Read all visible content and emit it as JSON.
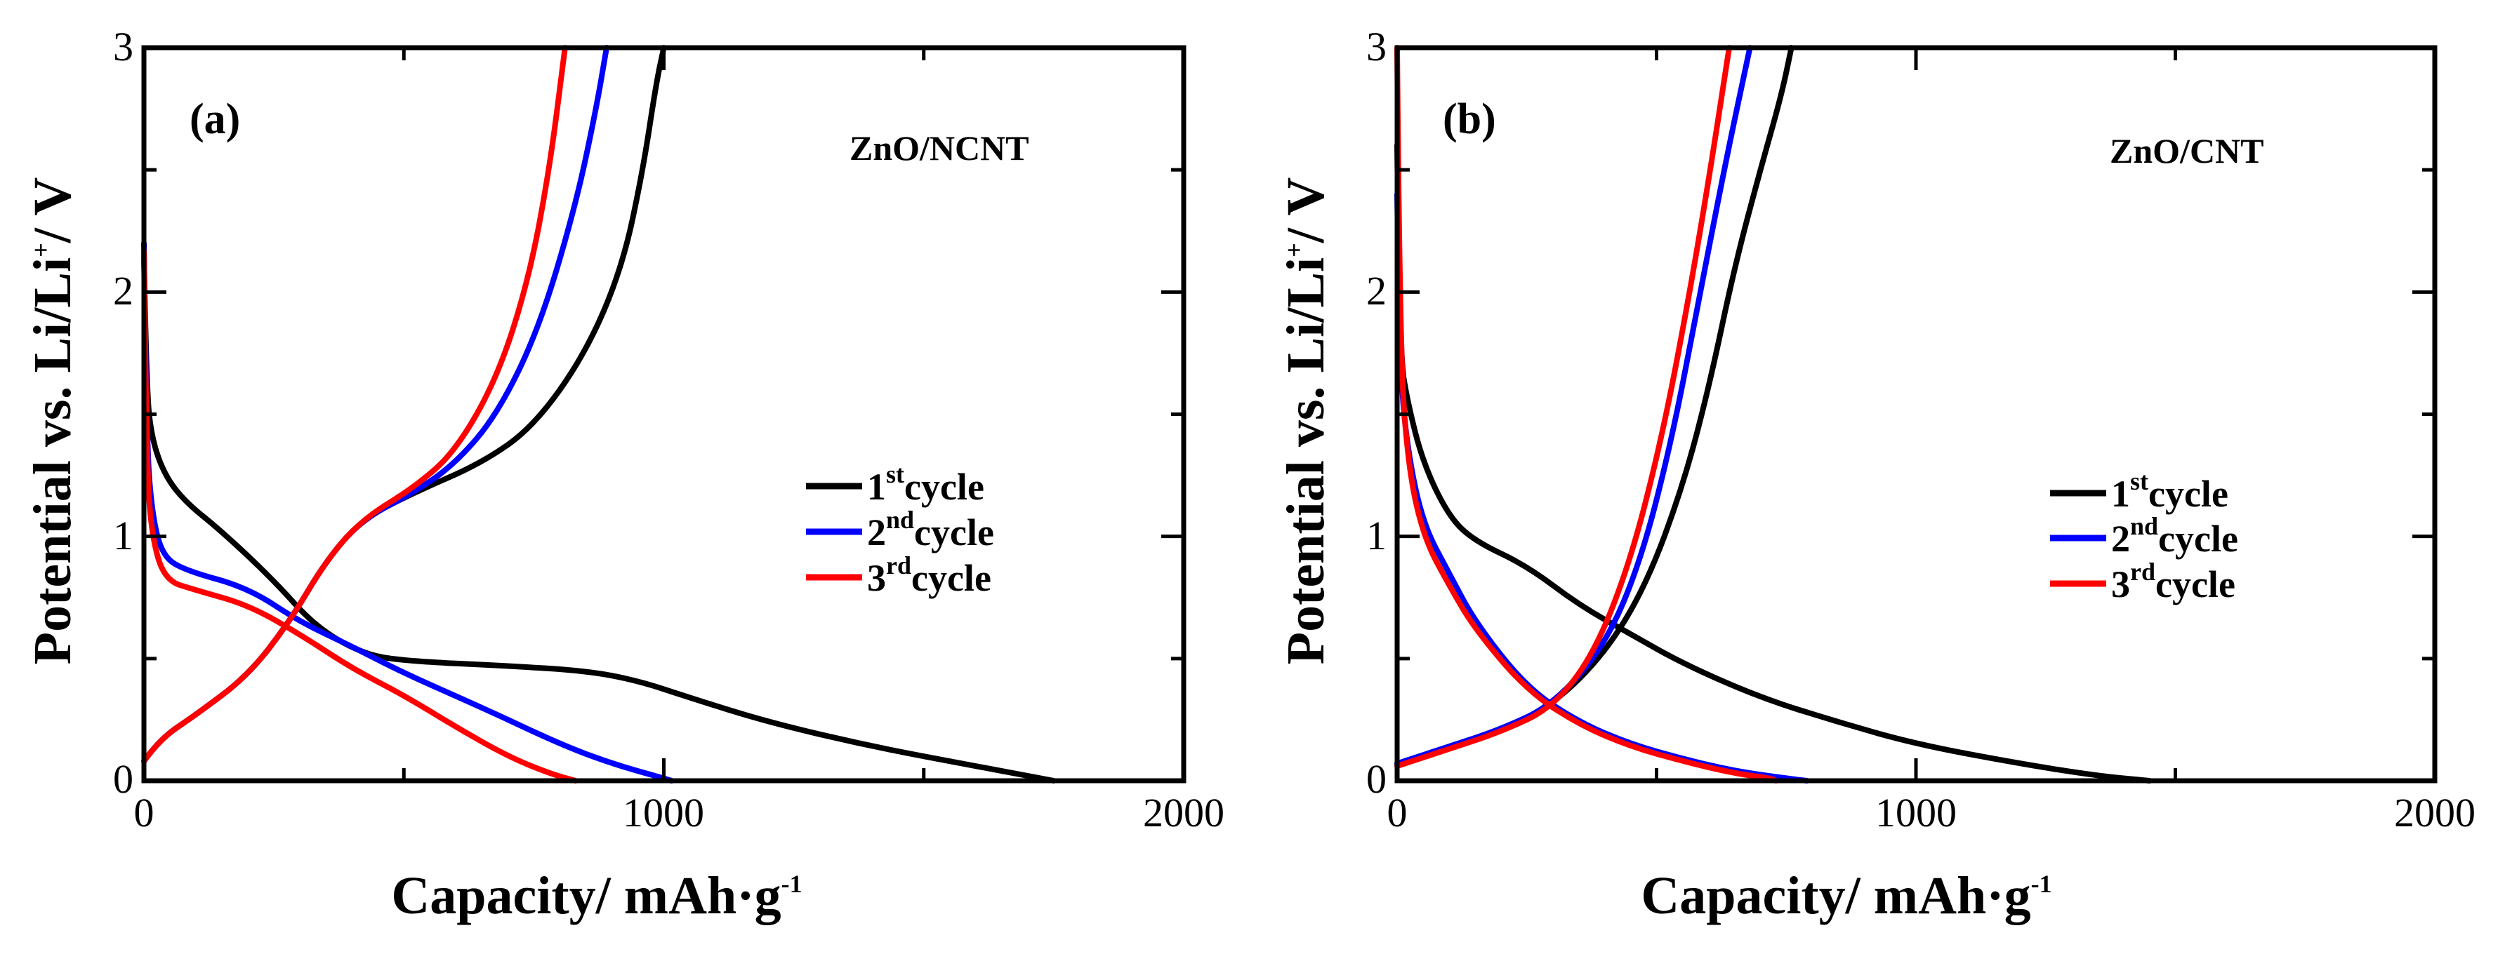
{
  "chart_data": [
    {
      "type": "line",
      "panel_label": "(a)",
      "sample": "ZnO/NCNT",
      "xlabel": "Capacity/ mAh·g",
      "xlabel_sup": "-1",
      "ylabel": "Potential vs. Li/Li",
      "ylabel_sup": "+",
      "ylabel_tail": "/ V",
      "xlim": [
        0,
        2000
      ],
      "ylim": [
        0,
        3
      ],
      "xticks": [
        "0",
        "1000",
        "2000"
      ],
      "yticks": [
        "0",
        "1",
        "2",
        "3"
      ],
      "legend_position": "middle-right",
      "series": [
        {
          "name": "1st cycle",
          "num": "1",
          "sup": "st",
          "word": "cycle",
          "color": "#000000",
          "discharge": [
            [
              0,
              2.15
            ],
            [
              5,
              1.6
            ],
            [
              15,
              1.4
            ],
            [
              40,
              1.25
            ],
            [
              80,
              1.14
            ],
            [
              150,
              1.02
            ],
            [
              250,
              0.82
            ],
            [
              330,
              0.63
            ],
            [
              420,
              0.52
            ],
            [
              500,
              0.49
            ],
            [
              700,
              0.47
            ],
            [
              850,
              0.45
            ],
            [
              950,
              0.41
            ],
            [
              1050,
              0.34
            ],
            [
              1200,
              0.24
            ],
            [
              1400,
              0.14
            ],
            [
              1600,
              0.06
            ],
            [
              1700,
              0.02
            ],
            [
              1750,
              0
            ]
          ],
          "charge": [
            [
              0,
              0.08
            ],
            [
              30,
              0.17
            ],
            [
              100,
              0.27
            ],
            [
              200,
              0.43
            ],
            [
              280,
              0.65
            ],
            [
              350,
              0.9
            ],
            [
              420,
              1.07
            ],
            [
              520,
              1.18
            ],
            [
              650,
              1.3
            ],
            [
              750,
              1.45
            ],
            [
              850,
              1.75
            ],
            [
              920,
              2.1
            ],
            [
              960,
              2.5
            ],
            [
              985,
              2.85
            ],
            [
              1000,
              3.0
            ]
          ]
        },
        {
          "name": "2nd cycle",
          "num": "2",
          "sup": "nd",
          "word": "cycle",
          "color": "#0000ff",
          "discharge": [
            [
              0,
              2.2
            ],
            [
              5,
              1.4
            ],
            [
              15,
              1.1
            ],
            [
              35,
              0.92
            ],
            [
              80,
              0.86
            ],
            [
              200,
              0.79
            ],
            [
              300,
              0.65
            ],
            [
              400,
              0.55
            ],
            [
              500,
              0.44
            ],
            [
              650,
              0.3
            ],
            [
              800,
              0.15
            ],
            [
              900,
              0.07
            ],
            [
              1000,
              0.01
            ],
            [
              1015,
              0
            ]
          ],
          "charge": [
            [
              0,
              0.08
            ],
            [
              30,
              0.17
            ],
            [
              100,
              0.27
            ],
            [
              200,
              0.43
            ],
            [
              280,
              0.65
            ],
            [
              350,
              0.9
            ],
            [
              420,
              1.07
            ],
            [
              520,
              1.18
            ],
            [
              600,
              1.3
            ],
            [
              680,
              1.5
            ],
            [
              760,
              1.85
            ],
            [
              830,
              2.35
            ],
            [
              870,
              2.75
            ],
            [
              890,
              3.0
            ]
          ]
        },
        {
          "name": "3rd cycle",
          "num": "3",
          "sup": "rd",
          "word": "cycle",
          "color": "#ff0000",
          "discharge": [
            [
              0,
              2.17
            ],
            [
              5,
              1.3
            ],
            [
              15,
              1.0
            ],
            [
              40,
              0.82
            ],
            [
              100,
              0.78
            ],
            [
              200,
              0.72
            ],
            [
              300,
              0.6
            ],
            [
              400,
              0.46
            ],
            [
              500,
              0.35
            ],
            [
              600,
              0.22
            ],
            [
              700,
              0.1
            ],
            [
              780,
              0.03
            ],
            [
              830,
              0
            ]
          ],
          "charge": [
            [
              0,
              0.08
            ],
            [
              30,
              0.17
            ],
            [
              100,
              0.27
            ],
            [
              200,
              0.43
            ],
            [
              280,
              0.65
            ],
            [
              350,
              0.9
            ],
            [
              420,
              1.07
            ],
            [
              520,
              1.2
            ],
            [
              600,
              1.35
            ],
            [
              680,
              1.65
            ],
            [
              740,
              2.05
            ],
            [
              780,
              2.5
            ],
            [
              810,
              3.0
            ]
          ]
        }
      ]
    },
    {
      "type": "line",
      "panel_label": "(b)",
      "sample": "ZnO/CNT",
      "xlabel": "Capacity/ mAh·g",
      "xlabel_sup": "-1",
      "ylabel": "Potential vs. Li/Li",
      "ylabel_sup": "+",
      "ylabel_tail": "/ V",
      "xlim": [
        0,
        2000
      ],
      "ylim": [
        0,
        3
      ],
      "xticks": [
        "0",
        "1000",
        "2000"
      ],
      "yticks": [
        "0",
        "1",
        "2",
        "3"
      ],
      "legend_position": "middle-right",
      "series": [
        {
          "name": "1st cycle",
          "num": "1",
          "sup": "st",
          "word": "cycle",
          "color": "#000000",
          "discharge": [
            [
              0,
              2.6
            ],
            [
              5,
              1.75
            ],
            [
              20,
              1.55
            ],
            [
              50,
              1.3
            ],
            [
              100,
              1.08
            ],
            [
              150,
              0.98
            ],
            [
              250,
              0.88
            ],
            [
              350,
              0.72
            ],
            [
              450,
              0.6
            ],
            [
              550,
              0.48
            ],
            [
              700,
              0.34
            ],
            [
              850,
              0.24
            ],
            [
              1000,
              0.15
            ],
            [
              1200,
              0.07
            ],
            [
              1350,
              0.02
            ],
            [
              1450,
              0
            ]
          ],
          "charge": [
            [
              0,
              0.07
            ],
            [
              100,
              0.14
            ],
            [
              200,
              0.21
            ],
            [
              300,
              0.31
            ],
            [
              400,
              0.52
            ],
            [
              480,
              0.8
            ],
            [
              550,
              1.2
            ],
            [
              600,
              1.6
            ],
            [
              650,
              2.1
            ],
            [
              700,
              2.5
            ],
            [
              740,
              2.8
            ],
            [
              760,
              3.0
            ]
          ]
        },
        {
          "name": "2nd cycle",
          "num": "2",
          "sup": "nd",
          "word": "cycle",
          "color": "#0000ff",
          "discharge": [
            [
              0,
              2.4
            ],
            [
              5,
              1.7
            ],
            [
              20,
              1.35
            ],
            [
              50,
              1.05
            ],
            [
              100,
              0.85
            ],
            [
              150,
              0.65
            ],
            [
              250,
              0.38
            ],
            [
              350,
              0.24
            ],
            [
              450,
              0.15
            ],
            [
              550,
              0.09
            ],
            [
              650,
              0.04
            ],
            [
              750,
              0.01
            ],
            [
              790,
              0
            ]
          ],
          "charge": [
            [
              0,
              0.07
            ],
            [
              100,
              0.14
            ],
            [
              200,
              0.21
            ],
            [
              300,
              0.31
            ],
            [
              400,
              0.55
            ],
            [
              470,
              0.9
            ],
            [
              530,
              1.4
            ],
            [
              580,
              1.95
            ],
            [
              630,
              2.5
            ],
            [
              680,
              3.0
            ]
          ]
        },
        {
          "name": "3rd cycle",
          "num": "3",
          "sup": "rd",
          "word": "cycle",
          "color": "#ff0000",
          "discharge": [
            [
              0,
              3.0
            ],
            [
              5,
              1.8
            ],
            [
              20,
              1.3
            ],
            [
              50,
              1.0
            ],
            [
              100,
              0.8
            ],
            [
              150,
              0.62
            ],
            [
              250,
              0.37
            ],
            [
              350,
              0.23
            ],
            [
              450,
              0.14
            ],
            [
              550,
              0.08
            ],
            [
              650,
              0.03
            ],
            [
              720,
              0.01
            ],
            [
              730,
              0
            ]
          ],
          "charge": [
            [
              0,
              0.06
            ],
            [
              100,
              0.13
            ],
            [
              200,
              0.2
            ],
            [
              300,
              0.3
            ],
            [
              380,
              0.52
            ],
            [
              450,
              0.9
            ],
            [
              510,
              1.4
            ],
            [
              560,
              1.95
            ],
            [
              600,
              2.45
            ],
            [
              640,
              3.0
            ]
          ]
        }
      ]
    }
  ]
}
